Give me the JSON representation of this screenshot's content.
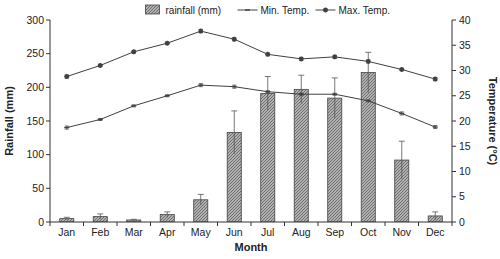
{
  "chart_data": {
    "type": "bar",
    "categories": [
      "Jan",
      "Feb",
      "Mar",
      "Apr",
      "May",
      "Jun",
      "Jul",
      "Aug",
      "Sep",
      "Oct",
      "Nov",
      "Dec"
    ],
    "x_label": "Month",
    "y_label": "Rainfall (mm)",
    "y2_label": "Temperature (°C)",
    "ylim": [
      0,
      300
    ],
    "yticks": [
      0,
      50,
      100,
      150,
      200,
      250,
      300
    ],
    "y2lim": [
      0,
      40
    ],
    "y2ticks": [
      0,
      5,
      10,
      15,
      20,
      25,
      30,
      35,
      40
    ],
    "legend": "top",
    "grid": false,
    "series": [
      {
        "name": "rainfall (mm)",
        "type": "bar",
        "color": "#b0b0b0",
        "values": [
          5,
          8,
          3,
          11,
          33,
          133,
          191,
          197,
          184,
          222,
          92,
          9
        ],
        "errors": [
          2,
          4,
          1,
          4,
          8,
          32,
          25,
          21,
          30,
          30,
          28,
          6
        ]
      },
      {
        "name": "Min. Temp.",
        "type": "line",
        "axis": "y2",
        "color": "#404040",
        "marker": "dash",
        "values": [
          18.7,
          20.3,
          23.0,
          25.0,
          27.1,
          26.8,
          25.8,
          25.3,
          25.3,
          24.0,
          21.5,
          18.8
        ],
        "errors": [
          0.3,
          0.2,
          0.2,
          0.2,
          0.3,
          0.3,
          0.2,
          0.2,
          0.2,
          0.2,
          0.3,
          0.3
        ]
      },
      {
        "name": "Max. Temp.",
        "type": "line",
        "axis": "y2",
        "color": "#404040",
        "marker": "star",
        "values": [
          28.8,
          31.0,
          33.7,
          35.4,
          37.8,
          36.2,
          33.2,
          32.3,
          32.7,
          31.8,
          30.2,
          28.3
        ],
        "errors": [
          0.3,
          0.2,
          0.2,
          0.2,
          0.3,
          0.3,
          0.2,
          0.2,
          0.2,
          0.2,
          0.2,
          0.3
        ]
      }
    ]
  }
}
